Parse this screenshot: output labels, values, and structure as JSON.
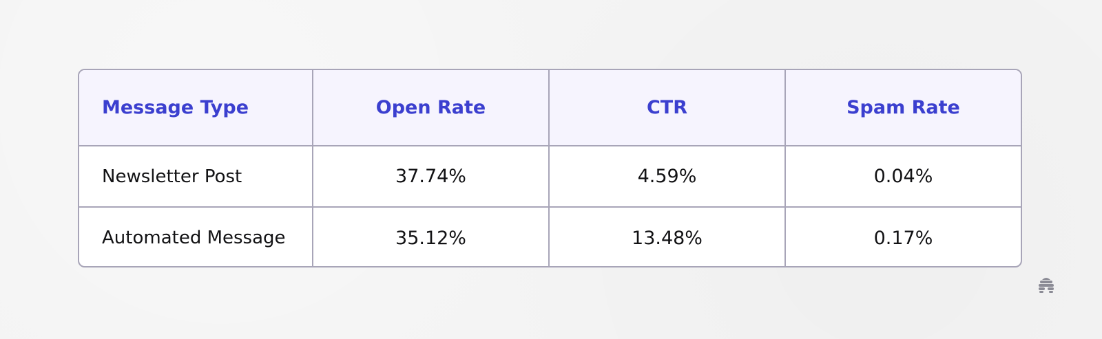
{
  "table": {
    "headers": [
      "Message Type",
      "Open Rate",
      "CTR",
      "Spam Rate"
    ],
    "rows": [
      [
        "Newsletter Post",
        "37.74%",
        "4.59%",
        "0.04%"
      ],
      [
        "Automated Message",
        "35.12%",
        "13.48%",
        "0.17%"
      ]
    ]
  },
  "colors": {
    "header_text": "#3b3fcf",
    "header_bg": "#f6f4fe",
    "border": "#a8a5b8",
    "body_text": "#121214",
    "page_bg": "#f4f4f4"
  },
  "logo": {
    "icon": "beehive-icon"
  }
}
